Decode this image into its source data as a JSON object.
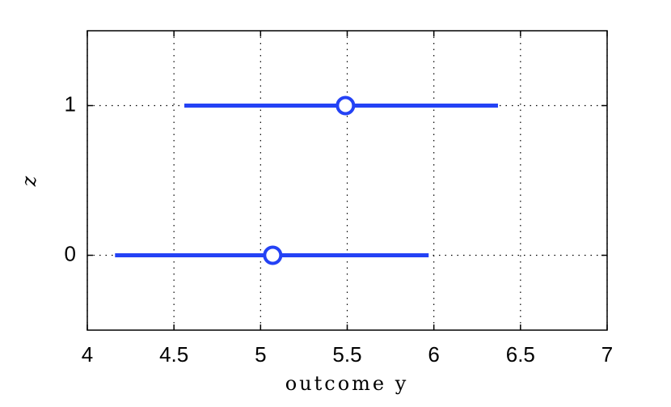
{
  "chart_data": {
    "type": "interval",
    "xlabel": "outcome y",
    "ylabel": "z",
    "y": [
      0,
      1
    ],
    "estimates": [
      5.07,
      5.49
    ],
    "lower": [
      4.16,
      4.56
    ],
    "upper": [
      5.97,
      6.37
    ],
    "color": "#2442f5",
    "xlim": [
      4,
      7
    ],
    "xticks": [
      4,
      4.5,
      5,
      5.5,
      6,
      6.5,
      7
    ],
    "ylim": [
      -0.5,
      1.5
    ],
    "yticks": [
      0,
      1
    ],
    "grid": true
  }
}
